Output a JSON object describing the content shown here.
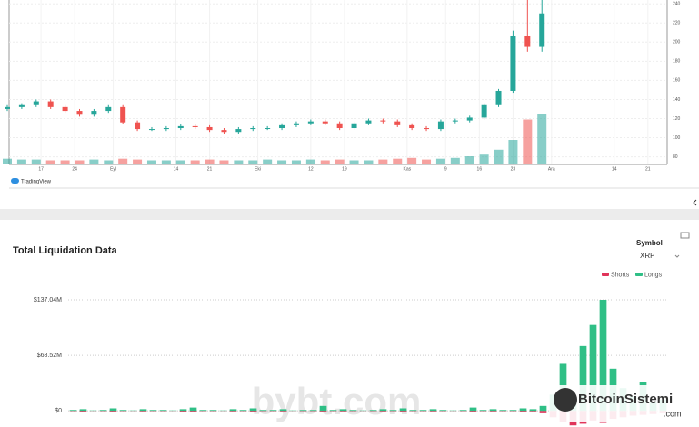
{
  "price_chart": {
    "type": "candlestick",
    "x": [
      0,
      3,
      6,
      9,
      12,
      15,
      18,
      21,
      24,
      27,
      30,
      33,
      36,
      39,
      42,
      45,
      48,
      51,
      54,
      57,
      60,
      63,
      66,
      69,
      72,
      75,
      78,
      81,
      84,
      87,
      90,
      93,
      96,
      99,
      102,
      105,
      108,
      111
    ],
    "open": [
      130,
      132,
      134,
      138,
      132,
      128,
      124,
      128,
      132,
      116,
      109,
      109,
      110,
      112,
      111,
      108,
      106,
      109,
      110,
      110,
      113,
      115,
      117,
      115,
      110,
      115,
      118,
      117,
      113,
      110,
      109,
      117,
      118,
      121,
      134,
      149,
      206,
      195
    ],
    "high": [
      134,
      136,
      140,
      140,
      134,
      130,
      130,
      134,
      134,
      118,
      111,
      112,
      114,
      114,
      113,
      110,
      111,
      112,
      112,
      115,
      117,
      119,
      119,
      117,
      117,
      120,
      120,
      119,
      115,
      112,
      119,
      120,
      123,
      136,
      151,
      212,
      244,
      244
    ],
    "low": [
      128,
      130,
      132,
      130,
      126,
      122,
      122,
      126,
      114,
      107,
      107,
      107,
      108,
      109,
      106,
      104,
      104,
      107,
      108,
      108,
      111,
      113,
      113,
      108,
      108,
      113,
      115,
      111,
      108,
      107,
      107,
      115,
      116,
      119,
      132,
      147,
      190,
      190
    ],
    "close": [
      132,
      134,
      138,
      132,
      128,
      124,
      128,
      132,
      116,
      109,
      109,
      110,
      112,
      111,
      108,
      106,
      109,
      110,
      110,
      113,
      115,
      117,
      115,
      110,
      115,
      118,
      117,
      113,
      110,
      109,
      117,
      118,
      121,
      134,
      149,
      206,
      195,
      230
    ],
    "volume": [
      7,
      6,
      6,
      5,
      5,
      5,
      6,
      5,
      7,
      6,
      5,
      5,
      5,
      5,
      6,
      5,
      5,
      5,
      6,
      5,
      5,
      6,
      5,
      6,
      5,
      5,
      6,
      7,
      8,
      6,
      7,
      8,
      10,
      12,
      18,
      30,
      55,
      62
    ],
    "volume_ylim": [
      0,
      100
    ],
    "up_color": "#26a69a",
    "down_color": "#ef5350",
    "xlim": [
      0,
      137
    ],
    "xticks": [
      {
        "value": 7,
        "label": "17"
      },
      {
        "value": 14,
        "label": "24"
      },
      {
        "value": 22,
        "label": "Eyl"
      },
      {
        "value": 35,
        "label": "14"
      },
      {
        "value": 42,
        "label": "21"
      },
      {
        "value": 52,
        "label": "Eki"
      },
      {
        "value": 63,
        "label": "12"
      },
      {
        "value": 70,
        "label": "19"
      },
      {
        "value": 83,
        "label": "Kas"
      },
      {
        "value": 91,
        "label": "9"
      },
      {
        "value": 98,
        "label": "16"
      },
      {
        "value": 105,
        "label": "23"
      },
      {
        "value": 113,
        "label": "Ara"
      },
      {
        "value": 126,
        "label": "14"
      },
      {
        "value": 133,
        "label": "21"
      }
    ],
    "ylim": [
      72,
      244
    ],
    "yticks": [
      80,
      100,
      120,
      140,
      160,
      180,
      200,
      220,
      240
    ],
    "grid": true,
    "logo": "TradingView"
  },
  "chart_data": {
    "type": "bar",
    "title": "Total Liquidation Data",
    "symbol_label": "Symbol",
    "symbol": "XRP",
    "categories": [
      null,
      null,
      null,
      null,
      null,
      null,
      null,
      null,
      null,
      null,
      null,
      null,
      null,
      null,
      null,
      null,
      null,
      null,
      null,
      null,
      null,
      null,
      null,
      null,
      null,
      null,
      null,
      null,
      null,
      null,
      null,
      null,
      null,
      null,
      null,
      null,
      null,
      null,
      null,
      null,
      null,
      null,
      null,
      null,
      null,
      null,
      null,
      null,
      null,
      null,
      null,
      null,
      null,
      null,
      null,
      null,
      null,
      null,
      null,
      null
    ],
    "series": [
      {
        "name": "Shorts",
        "color": "#e0345a",
        "values": [
          -0.5,
          -1,
          -0.3,
          -0.5,
          -1,
          -0.5,
          -0.3,
          -0.8,
          -0.5,
          -0.5,
          -0.3,
          -1,
          -1.5,
          -0.5,
          -0.5,
          -0.3,
          -0.8,
          -0.5,
          -1,
          -0.5,
          -0.5,
          -0.8,
          -0.3,
          -0.5,
          -0.5,
          -2,
          -0.5,
          -0.8,
          -0.5,
          -0.3,
          -0.5,
          -0.8,
          -0.5,
          -1,
          -0.5,
          -0.5,
          -0.8,
          -0.5,
          -0.3,
          -0.5,
          -1.5,
          -0.5,
          -0.8,
          -0.5,
          -0.5,
          -1,
          -0.8,
          -3,
          -8,
          -14,
          -18,
          -16,
          -12,
          -15,
          -10,
          -8,
          -6,
          -5,
          -4,
          -3
        ]
      },
      {
        "name": "Longs",
        "color": "#2fbf86",
        "values": [
          1,
          2,
          0.5,
          1,
          3,
          1,
          0.5,
          2,
          1,
          1,
          0.5,
          2,
          4,
          1,
          1,
          0.5,
          2,
          1,
          3,
          1,
          1,
          2,
          0.5,
          1,
          1,
          6,
          1,
          2,
          1,
          0.5,
          1,
          2,
          1,
          3,
          1,
          1,
          2,
          1,
          0.5,
          1,
          4,
          1,
          2,
          1,
          1,
          3,
          2,
          6,
          20,
          58,
          12,
          80,
          106,
          137.04,
          52,
          28,
          18,
          36,
          10,
          14
        ]
      }
    ],
    "ylim": [
      -20,
      137.04
    ],
    "yticks": [
      {
        "value": 0,
        "label": "$0"
      },
      {
        "value": 68.52,
        "label": "$68.52M"
      },
      {
        "value": 137.04,
        "label": "$137.04M"
      }
    ],
    "grid": true,
    "legend": "top-right",
    "watermark": "bybt.com",
    "brand": "BitcoinSistemi",
    "brand_suffix": ".com"
  }
}
